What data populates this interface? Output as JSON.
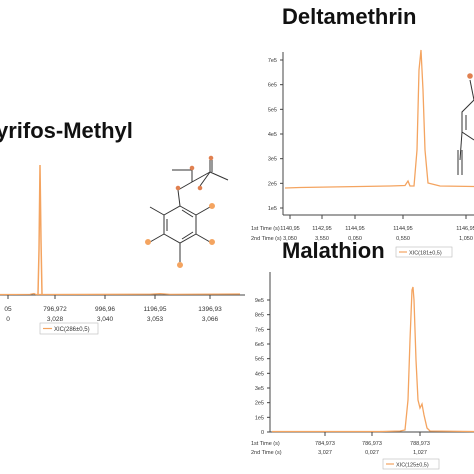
{
  "titles": {
    "chlorpyrifos": "yrifos-Methyl",
    "deltamethrin": "Deltamethrin",
    "malathion": "Malathion"
  },
  "colors": {
    "trace": "#f4a460",
    "axis": "#444444",
    "legend_line": "#f4a460"
  },
  "chart_data": [
    {
      "id": "chlorpyrifos-methyl",
      "type": "line",
      "title": "yrifos-Methyl",
      "x_ticks": [
        {
          "t1": "05",
          "t2": "0"
        },
        {
          "t1": "796,972",
          "t2": "3,028"
        },
        {
          "t1": "996,96",
          "t2": "3,040"
        },
        {
          "t1": "1196,95",
          "t2": "3,053"
        },
        {
          "t1": "1396,93",
          "t2": "3,066"
        }
      ],
      "legend": "XIC(286±0,5)",
      "peaks": [
        {
          "x": 796.0,
          "rel_height": 0.83
        }
      ],
      "note_structure": "molecule structure drawing"
    },
    {
      "id": "deltamethrin",
      "type": "line",
      "title": "Deltamethrin",
      "y_ticks": [
        "7e5",
        "6e5",
        "5e5",
        "4e5",
        "3e5",
        "2e5",
        "1e5"
      ],
      "x_row_labels": [
        "1st Time (s)",
        "2nd Time (s)"
      ],
      "x_ticks": [
        {
          "t1": "1140,95",
          "t2": "3,050"
        },
        {
          "t1": "1142,95",
          "t2": "3,550"
        },
        {
          "t1": "1144,95",
          "t2": "0,050"
        },
        {
          "t1": "1144,95",
          "t2": "0,550"
        },
        {
          "t1": "1146,95",
          "t2": "1,050"
        }
      ],
      "legend": "XIC(181±0,5)",
      "peaks": [
        {
          "x": 1145.5,
          "rel_height": 0.9
        }
      ]
    },
    {
      "id": "malathion",
      "type": "line",
      "title": "Malathion",
      "y_ticks": [
        "9e5",
        "8e5",
        "7e5",
        "6e5",
        "5e5",
        "4e5",
        "3e5",
        "2e5",
        "1e5",
        "0"
      ],
      "x_row_labels": [
        "1st Time (s)",
        "2nd Time (s)"
      ],
      "x_ticks": [
        {
          "t1": "784,973",
          "t2": "3,027"
        },
        {
          "t1": "786,973",
          "t2": "0,027"
        },
        {
          "t1": "788,973",
          "t2": "1,027"
        }
      ],
      "legend": "XIC(125±0,5)",
      "peaks": [
        {
          "x": 787.9,
          "rel_height": 0.95
        }
      ]
    }
  ]
}
